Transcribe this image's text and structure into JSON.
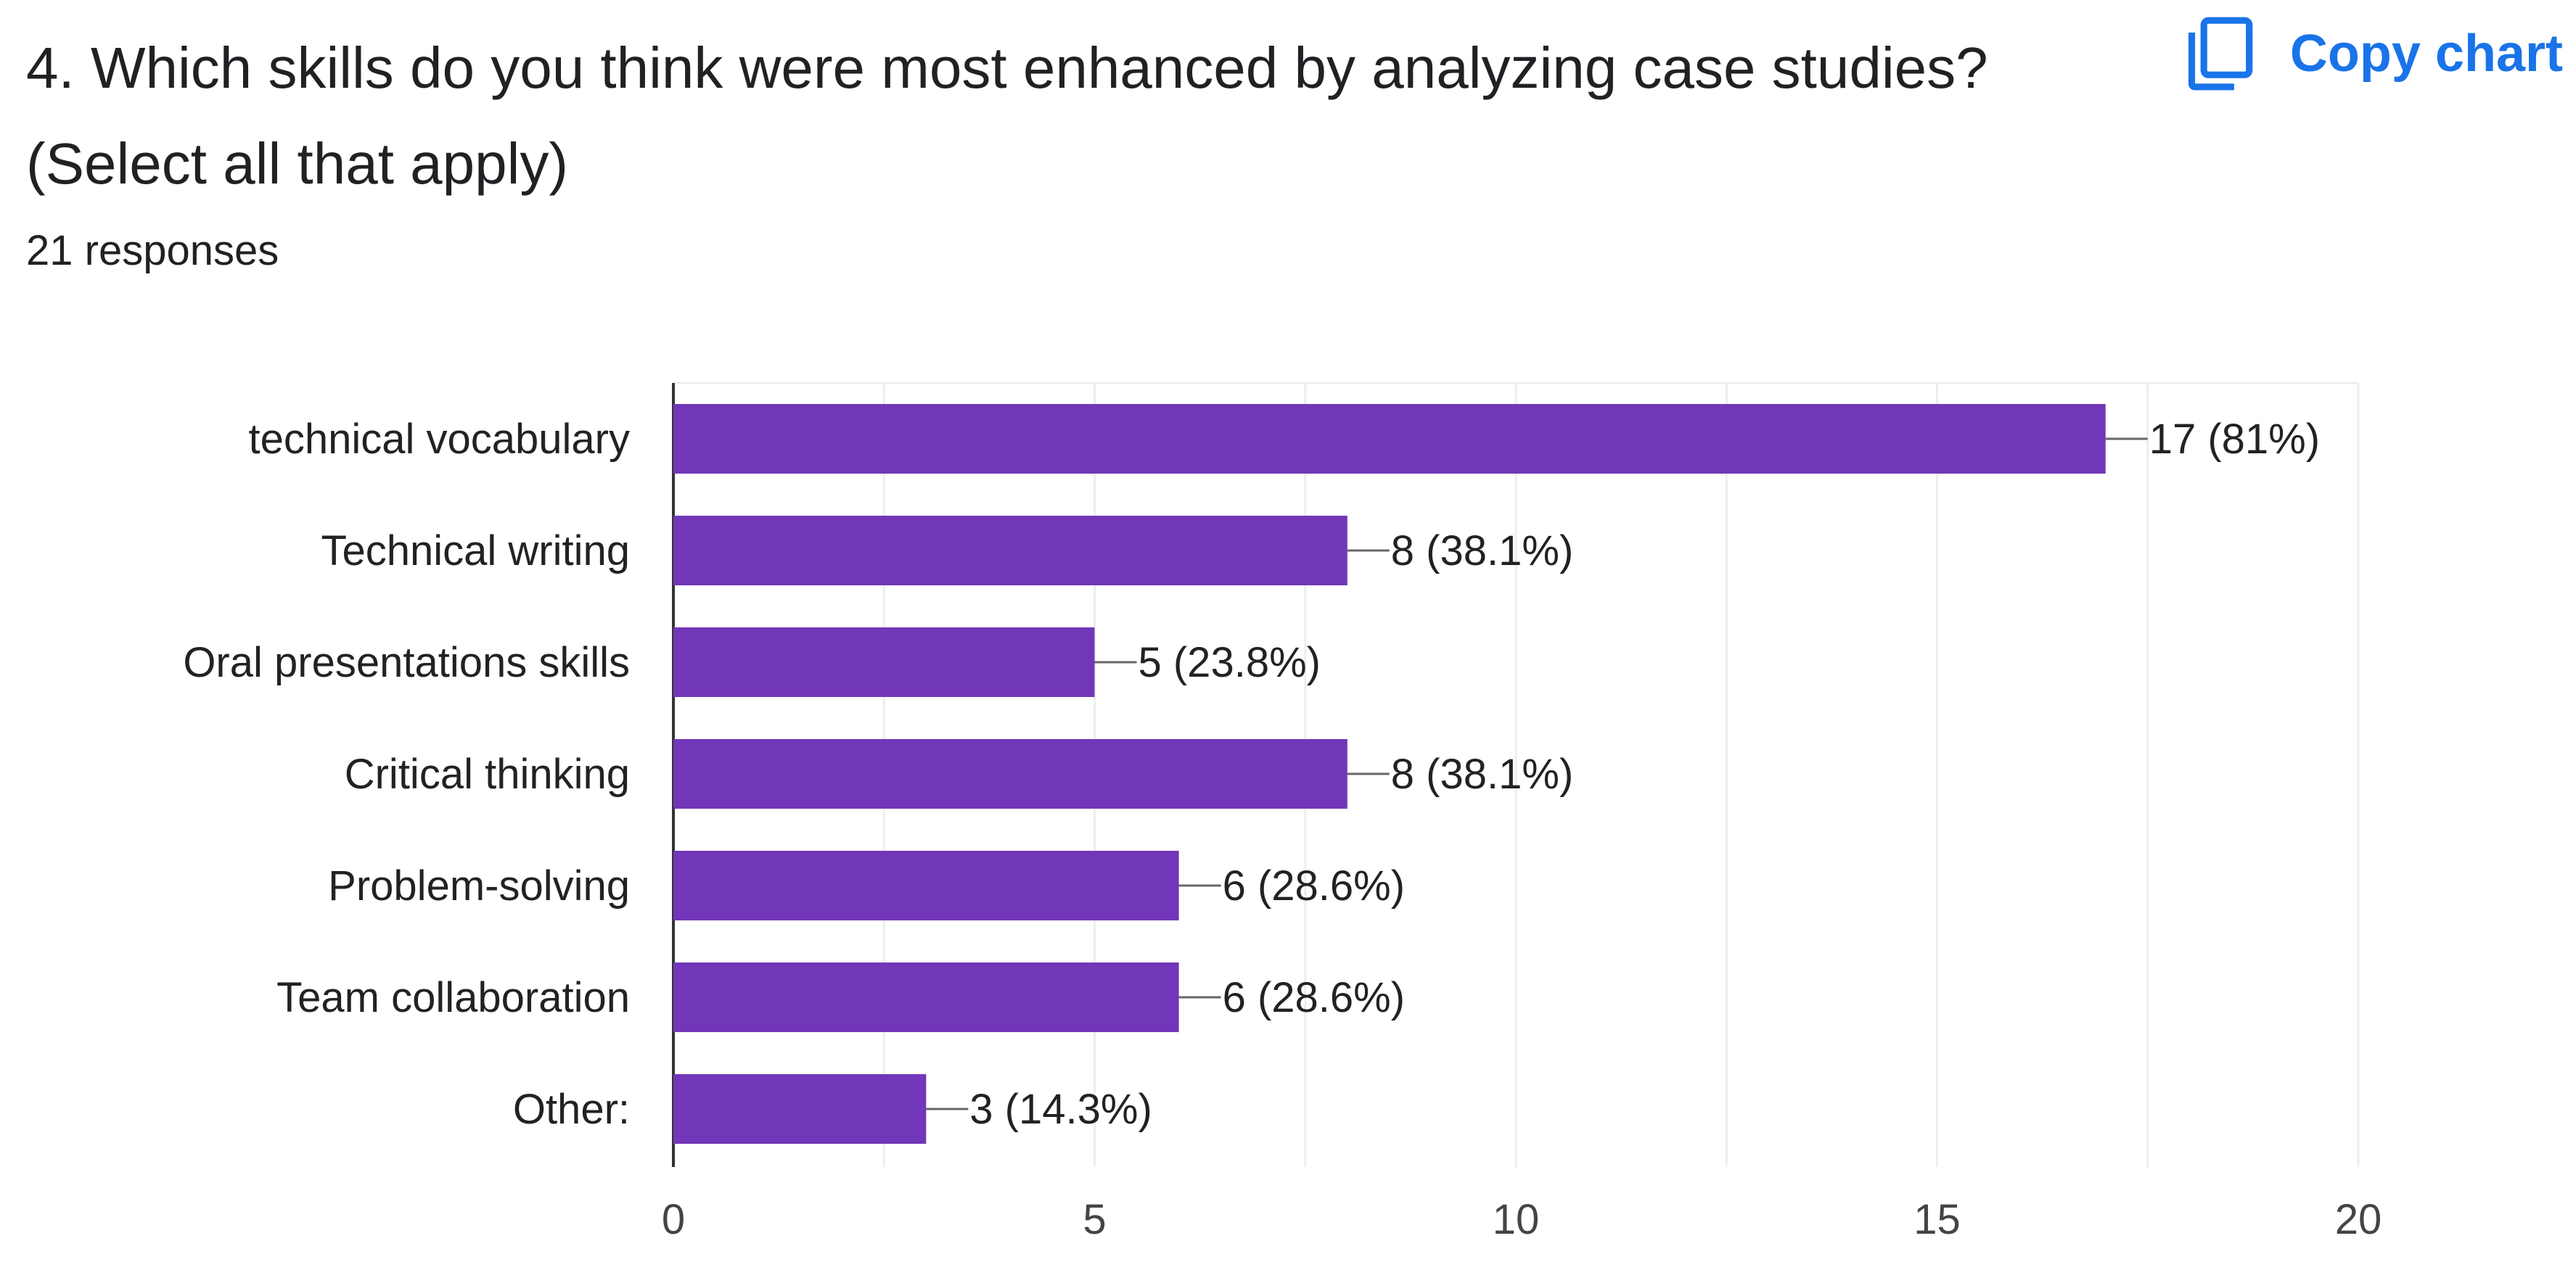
{
  "question": {
    "line1": "4. Which skills do you think were most enhanced by analyzing case studies?",
    "line2": "(Select all that apply)",
    "responses": "21 responses"
  },
  "actions": {
    "copy_chart_label": "Copy chart",
    "copy_icon": "copy-icon"
  },
  "colors": {
    "bar": "#7236b8",
    "gridline": "#eeeeee",
    "axis": "#333333",
    "leader": "#666666",
    "accent": "#1a73e8"
  },
  "chart_data": {
    "type": "bar",
    "orientation": "horizontal",
    "title": "4. Which skills do you think were most enhanced by analyzing case studies? (Select all that apply)",
    "xlabel": "",
    "ylabel": "",
    "xlim": [
      0,
      20
    ],
    "xticks": [
      0,
      5,
      10,
      15,
      20
    ],
    "xtick_labels": [
      "0",
      "5",
      "10",
      "15",
      "20"
    ],
    "grid": true,
    "legend": "none",
    "categories": [
      "technical vocabulary",
      "Technical writing",
      "Oral presentations skills",
      "Critical thinking",
      "Problem-solving",
      "Team collaboration",
      "Other:"
    ],
    "values": [
      17,
      8,
      5,
      8,
      6,
      6,
      3
    ],
    "value_labels": [
      "17 (81%)",
      "8 (38.1%)",
      "5 (23.8%)",
      "8 (38.1%)",
      "6 (28.6%)",
      "6 (28.6%)",
      "3 (14.3%)"
    ]
  }
}
